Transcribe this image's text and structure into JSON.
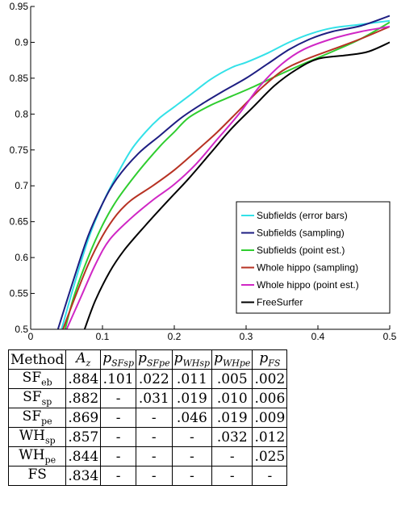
{
  "chart_data": {
    "type": "line",
    "title": "",
    "xlabel": "",
    "ylabel": "",
    "xlim": [
      0,
      0.5
    ],
    "ylim": [
      0.5,
      0.95
    ],
    "grid": false,
    "legend_position": "lower-right",
    "x_ticks": [
      "0",
      "0.1",
      "0.2",
      "0.3",
      "0.4",
      "0.5"
    ],
    "y_ticks": [
      "0.5",
      "0.55",
      "0.6",
      "0.65",
      "0.7",
      "0.75",
      "0.8",
      "0.85",
      "0.9",
      "0.95"
    ],
    "series": [
      {
        "name": "Subfields (error  bars)",
        "color": "#33e1e8",
        "points": [
          [
            0.043,
            0.5
          ],
          [
            0.06,
            0.56
          ],
          [
            0.08,
            0.625
          ],
          [
            0.1,
            0.675
          ],
          [
            0.12,
            0.715
          ],
          [
            0.14,
            0.75
          ],
          [
            0.16,
            0.775
          ],
          [
            0.18,
            0.795
          ],
          [
            0.2,
            0.81
          ],
          [
            0.22,
            0.825
          ],
          [
            0.25,
            0.848
          ],
          [
            0.28,
            0.865
          ],
          [
            0.3,
            0.872
          ],
          [
            0.33,
            0.885
          ],
          [
            0.36,
            0.9
          ],
          [
            0.39,
            0.912
          ],
          [
            0.42,
            0.92
          ],
          [
            0.46,
            0.925
          ],
          [
            0.5,
            0.93
          ]
        ]
      },
      {
        "name": "Subfields (sampling)",
        "color": "#1e1e82",
        "points": [
          [
            0.038,
            0.5
          ],
          [
            0.06,
            0.57
          ],
          [
            0.08,
            0.63
          ],
          [
            0.1,
            0.675
          ],
          [
            0.12,
            0.71
          ],
          [
            0.15,
            0.745
          ],
          [
            0.18,
            0.77
          ],
          [
            0.21,
            0.795
          ],
          [
            0.24,
            0.815
          ],
          [
            0.27,
            0.833
          ],
          [
            0.3,
            0.85
          ],
          [
            0.33,
            0.87
          ],
          [
            0.36,
            0.89
          ],
          [
            0.39,
            0.905
          ],
          [
            0.42,
            0.915
          ],
          [
            0.46,
            0.923
          ],
          [
            0.5,
            0.937
          ]
        ]
      },
      {
        "name": "Subfields (point est.)",
        "color": "#2fcd2f",
        "points": [
          [
            0.048,
            0.5
          ],
          [
            0.06,
            0.545
          ],
          [
            0.08,
            0.6
          ],
          [
            0.1,
            0.645
          ],
          [
            0.12,
            0.68
          ],
          [
            0.15,
            0.72
          ],
          [
            0.18,
            0.755
          ],
          [
            0.2,
            0.775
          ],
          [
            0.22,
            0.795
          ],
          [
            0.25,
            0.812
          ],
          [
            0.28,
            0.825
          ],
          [
            0.31,
            0.838
          ],
          [
            0.34,
            0.852
          ],
          [
            0.38,
            0.87
          ],
          [
            0.42,
            0.887
          ],
          [
            0.46,
            0.905
          ],
          [
            0.5,
            0.928
          ]
        ]
      },
      {
        "name": "Whole hippo (sampling)",
        "color": "#b73223",
        "points": [
          [
            0.045,
            0.5
          ],
          [
            0.06,
            0.54
          ],
          [
            0.08,
            0.59
          ],
          [
            0.1,
            0.63
          ],
          [
            0.12,
            0.66
          ],
          [
            0.14,
            0.68
          ],
          [
            0.17,
            0.7
          ],
          [
            0.2,
            0.722
          ],
          [
            0.23,
            0.748
          ],
          [
            0.26,
            0.775
          ],
          [
            0.29,
            0.805
          ],
          [
            0.32,
            0.835
          ],
          [
            0.35,
            0.86
          ],
          [
            0.38,
            0.875
          ],
          [
            0.42,
            0.89
          ],
          [
            0.46,
            0.905
          ],
          [
            0.5,
            0.922
          ]
        ]
      },
      {
        "name": "Whole hippo (point est.)",
        "color": "#d027c5",
        "points": [
          [
            0.05,
            0.5
          ],
          [
            0.07,
            0.545
          ],
          [
            0.09,
            0.59
          ],
          [
            0.11,
            0.625
          ],
          [
            0.14,
            0.655
          ],
          [
            0.17,
            0.68
          ],
          [
            0.2,
            0.702
          ],
          [
            0.23,
            0.73
          ],
          [
            0.26,
            0.765
          ],
          [
            0.29,
            0.8
          ],
          [
            0.32,
            0.84
          ],
          [
            0.35,
            0.87
          ],
          [
            0.38,
            0.89
          ],
          [
            0.42,
            0.905
          ],
          [
            0.46,
            0.915
          ],
          [
            0.5,
            0.922
          ]
        ]
      },
      {
        "name": "FreeSurfer",
        "color": "#000000",
        "points": [
          [
            0.075,
            0.5
          ],
          [
            0.09,
            0.54
          ],
          [
            0.11,
            0.58
          ],
          [
            0.13,
            0.61
          ],
          [
            0.16,
            0.645
          ],
          [
            0.19,
            0.678
          ],
          [
            0.22,
            0.71
          ],
          [
            0.25,
            0.745
          ],
          [
            0.28,
            0.78
          ],
          [
            0.31,
            0.81
          ],
          [
            0.34,
            0.84
          ],
          [
            0.37,
            0.862
          ],
          [
            0.4,
            0.877
          ],
          [
            0.44,
            0.882
          ],
          [
            0.47,
            0.887
          ],
          [
            0.5,
            0.9
          ]
        ]
      }
    ]
  },
  "table": {
    "headers": [
      {
        "main": "Method",
        "sub": ""
      },
      {
        "main": "A",
        "sub": "z"
      },
      {
        "main": "p",
        "sub": "SFsp"
      },
      {
        "main": "p",
        "sub": "SFpe"
      },
      {
        "main": "p",
        "sub": "WHsp"
      },
      {
        "main": "p",
        "sub": "WHpe"
      },
      {
        "main": "p",
        "sub": "FS"
      }
    ],
    "rows": [
      {
        "method": "SF",
        "method_sub": "eb",
        "cells": [
          ".884",
          ".101",
          ".022",
          ".011",
          ".005",
          ".002"
        ]
      },
      {
        "method": "SF",
        "method_sub": "sp",
        "cells": [
          ".882",
          "-",
          ".031",
          ".019",
          ".010",
          ".006"
        ]
      },
      {
        "method": "SF",
        "method_sub": "pe",
        "cells": [
          ".869",
          "-",
          "-",
          ".046",
          ".019",
          ".009"
        ]
      },
      {
        "method": "WH",
        "method_sub": "sp",
        "cells": [
          ".857",
          "-",
          "-",
          "-",
          ".032",
          ".012"
        ]
      },
      {
        "method": "WH",
        "method_sub": "pe",
        "cells": [
          ".844",
          "-",
          "-",
          "-",
          "-",
          ".025"
        ]
      },
      {
        "method": "FS",
        "method_sub": "",
        "cells": [
          ".834",
          "-",
          "-",
          "-",
          "-",
          "-"
        ]
      }
    ]
  }
}
